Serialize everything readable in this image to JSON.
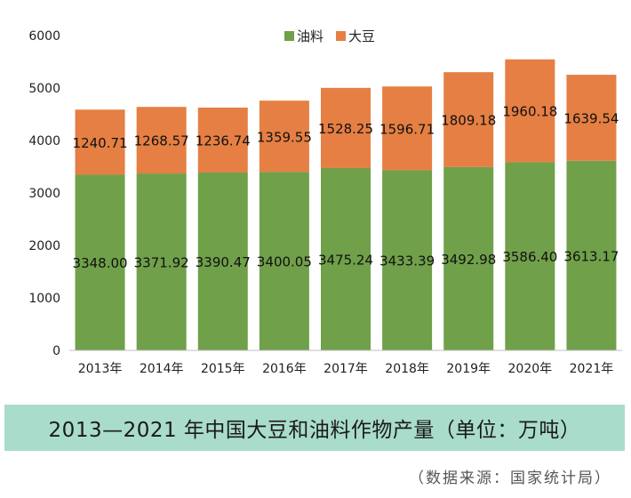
{
  "chart_data": {
    "type": "bar",
    "stacked": true,
    "categories": [
      "2013年",
      "2014年",
      "2015年",
      "2016年",
      "2017年",
      "2018年",
      "2019年",
      "2020年",
      "2021年"
    ],
    "series": [
      {
        "name": "油料",
        "values": [
          3348.0,
          3371.92,
          3390.47,
          3400.05,
          3475.24,
          3433.39,
          3492.98,
          3586.4,
          3613.17
        ],
        "labels": [
          "3348.00",
          "3371.92",
          "3390.47",
          "3400.05",
          "3475.24",
          "3433.39",
          "3492.98",
          "3586.40",
          "3613.17"
        ]
      },
      {
        "name": "大豆",
        "values": [
          1240.71,
          1268.57,
          1236.74,
          1359.55,
          1528.25,
          1596.71,
          1809.18,
          1960.18,
          1639.54
        ],
        "labels": [
          "1240.71",
          "1268.57",
          "1236.74",
          "1359.55",
          "1528.25",
          "1596.71",
          "1809.18",
          "1960.18",
          "1639.54"
        ]
      }
    ],
    "ylim": [
      0,
      6000
    ],
    "yticks": [
      "0",
      "1000",
      "2000",
      "3000",
      "4000",
      "5000",
      "6000"
    ],
    "legend_position": "top-center",
    "grid": false
  },
  "colors": {
    "oil": "#70a04a",
    "soy": "#e57f43",
    "caption_band": "#a9dccb"
  },
  "caption": "2013—2021 年中国大豆和油料作物产量（单位：万吨）",
  "source": "（数据来源：国家统计局）"
}
